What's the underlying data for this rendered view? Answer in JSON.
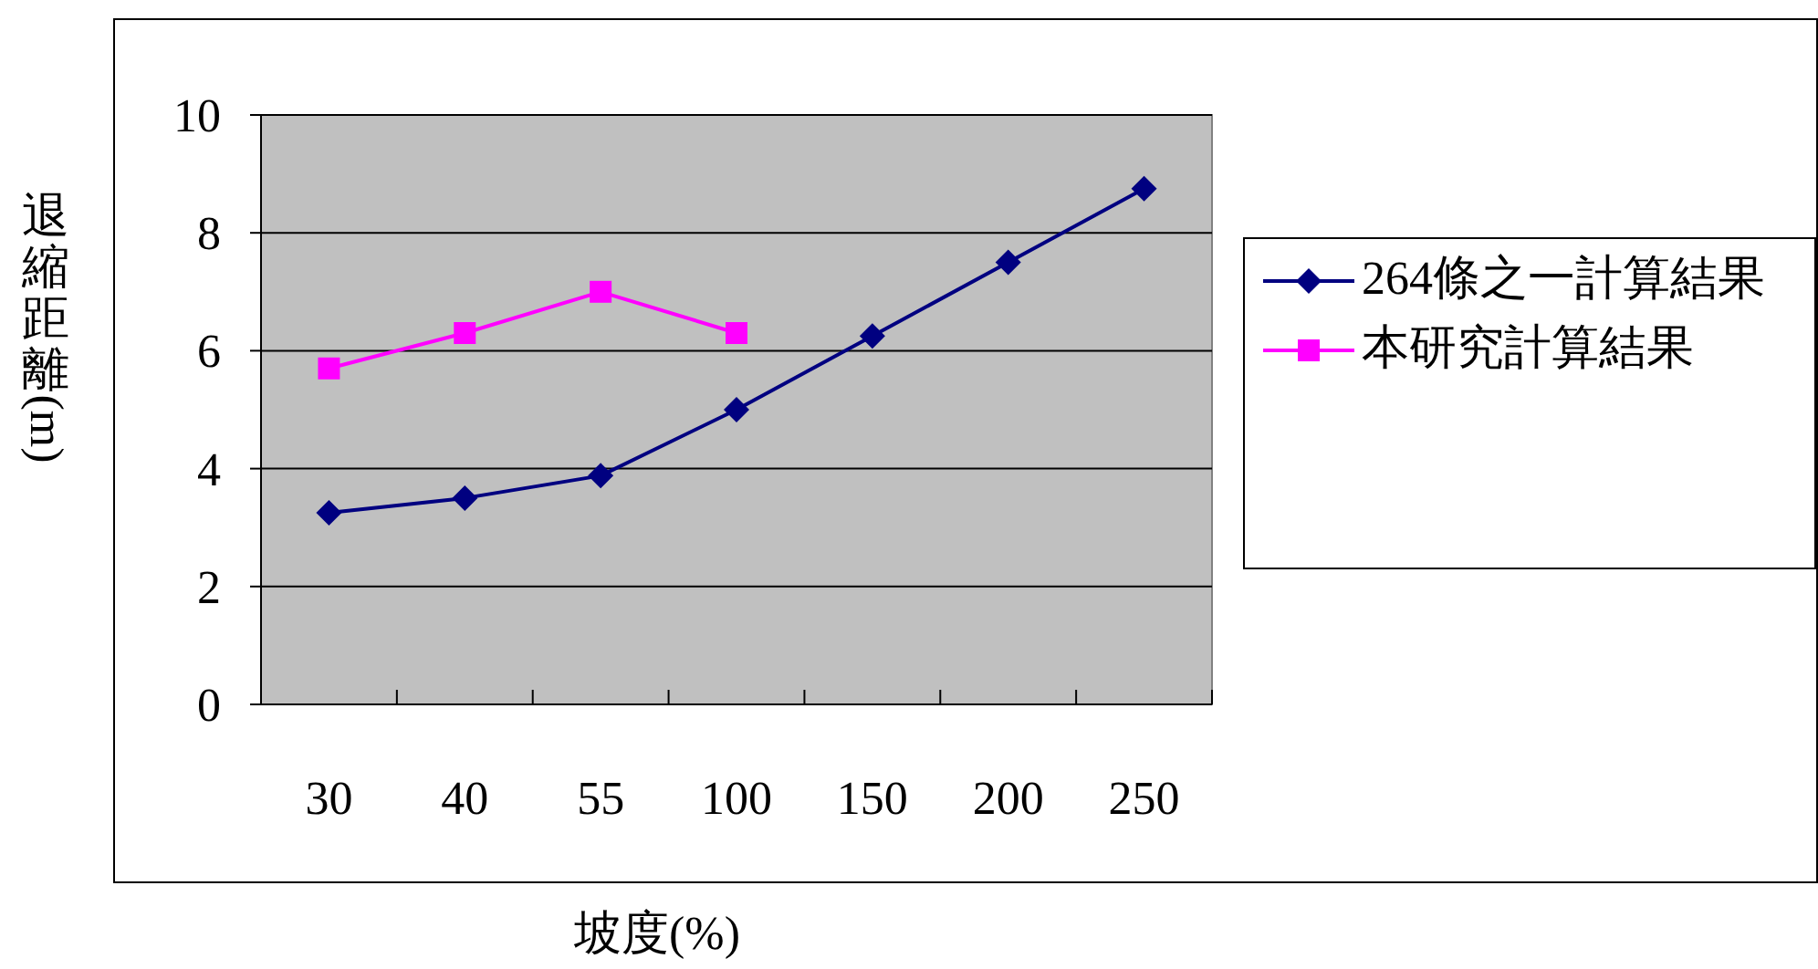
{
  "chart_data": {
    "type": "line",
    "xlabel": "坡度(%)",
    "ylabel": "退縮距離(m)",
    "categories": [
      "30",
      "40",
      "55",
      "100",
      "150",
      "200",
      "250"
    ],
    "ylim": [
      0,
      10
    ],
    "yticks": [
      0,
      2,
      4,
      6,
      8,
      10
    ],
    "grid": "y",
    "legend": "right",
    "series": [
      {
        "name": "264條之一計算結果",
        "color": "#000080",
        "marker": "diamond",
        "values": [
          3.25,
          3.5,
          3.88,
          5.0,
          6.25,
          7.5,
          8.75
        ]
      },
      {
        "name": "本研究計算結果",
        "color": "#ff00ff",
        "marker": "square",
        "values": [
          5.7,
          6.3,
          7.0,
          6.3,
          null,
          null,
          null
        ]
      }
    ]
  }
}
